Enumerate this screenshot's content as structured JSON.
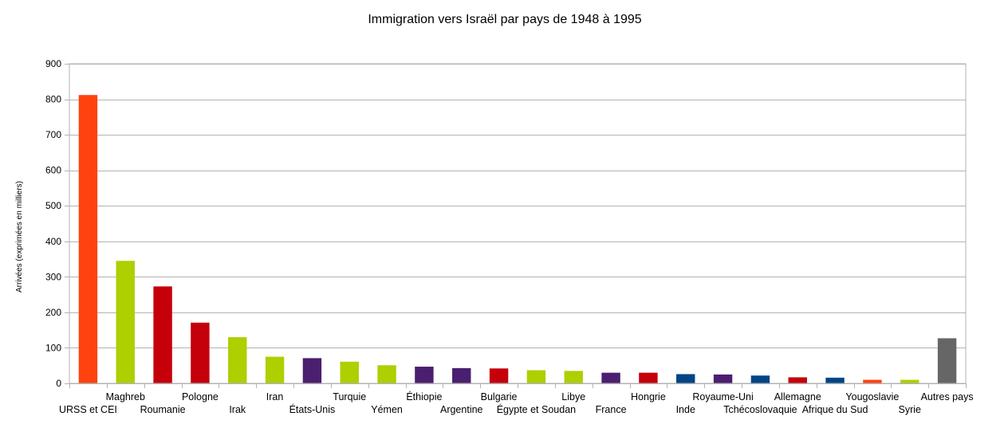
{
  "chart_data": {
    "type": "bar",
    "title": "Immigration vers Israël par pays de 1948 à 1995",
    "xlabel": "",
    "ylabel": "Arrivées (exprimées en milliers)",
    "ylim": [
      0,
      900
    ],
    "yticks": [
      0,
      100,
      200,
      300,
      400,
      500,
      600,
      700,
      800,
      900
    ],
    "grid": true,
    "categories": [
      "URSS et CEI",
      "Maghreb",
      "Roumanie",
      "Pologne",
      "Irak",
      "Iran",
      "États-Unis",
      "Turquie",
      "Yémen",
      "Éthiopie",
      "Argentine",
      "Bulgarie",
      "Égypte et Soudan",
      "Libye",
      "France",
      "Hongrie",
      "Inde",
      "Royaume-Uni",
      "Tchécoslovaquie",
      "Allemagne",
      "Afrique du Sud",
      "Yougoslavie",
      "Syrie",
      "Autres pays"
    ],
    "values": [
      812,
      345,
      273,
      171,
      130,
      75,
      71,
      61,
      51,
      47,
      43,
      42,
      37,
      35,
      30,
      30,
      26,
      25,
      22,
      17,
      16,
      10,
      10,
      127
    ],
    "colors": [
      "#ff420e",
      "#aecf00",
      "#c5000b",
      "#c5000b",
      "#aecf00",
      "#aecf00",
      "#4b1f6f",
      "#aecf00",
      "#aecf00",
      "#4b1f6f",
      "#4b1f6f",
      "#c5000b",
      "#aecf00",
      "#aecf00",
      "#4b1f6f",
      "#c5000b",
      "#004586",
      "#4b1f6f",
      "#004586",
      "#c5000b",
      "#004586",
      "#ff420e",
      "#aecf00",
      "#666666"
    ]
  }
}
